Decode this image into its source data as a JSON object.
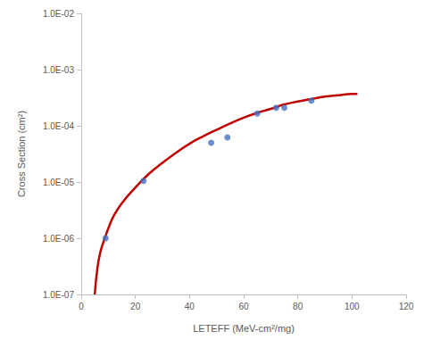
{
  "chart_data": {
    "type": "scatter",
    "x_label": "LETEFF (MeV-cm²/mg)",
    "y_label": "Cross Section (cm²)",
    "log": "y",
    "grid": false,
    "xlim": [
      0,
      120
    ],
    "xticks": [
      0,
      20,
      40,
      60,
      80,
      100,
      120
    ],
    "ylim": [
      1e-07,
      0.01
    ],
    "yticks": [
      {
        "value": 1e-07,
        "label": "1.0E-07"
      },
      {
        "value": 1e-06,
        "label": "1.0E-06"
      },
      {
        "value": 1e-05,
        "label": "1.0E-05"
      },
      {
        "value": 0.0001,
        "label": "1.0E-04"
      },
      {
        "value": 0.001,
        "label": "1.0E-03"
      },
      {
        "value": 0.01,
        "label": "1.0E-02"
      }
    ],
    "series": [
      {
        "type": "scatter",
        "color": "#4472c4",
        "marker": "circle",
        "x": [
          9,
          23,
          48,
          54,
          65,
          72,
          75,
          85
        ],
        "values": [
          1e-06,
          1.05e-05,
          5e-05,
          6.2e-05,
          0.000165,
          0.00021,
          0.00021,
          0.00028
        ]
      },
      {
        "type": "line",
        "color": "#c00000",
        "line_style": "solid",
        "x": [
          5,
          6,
          7,
          8,
          9,
          10,
          12,
          15,
          20,
          25,
          30,
          35,
          40,
          45,
          50,
          55,
          60,
          65,
          70,
          75,
          80,
          85,
          90,
          95,
          100,
          102
        ],
        "values": [
          1e-07,
          3e-07,
          5.5e-07,
          8e-07,
          1.1e-06,
          1.5e-06,
          2.5e-06,
          4.2e-06,
          8e-06,
          1.4e-05,
          2.2e-05,
          3.3e-05,
          4.8e-05,
          6.5e-05,
          8.5e-05,
          0.00011,
          0.00014,
          0.00017,
          0.0002,
          0.00024,
          0.00027,
          0.0003,
          0.00033,
          0.00035,
          0.00037,
          0.00037
        ]
      }
    ]
  }
}
